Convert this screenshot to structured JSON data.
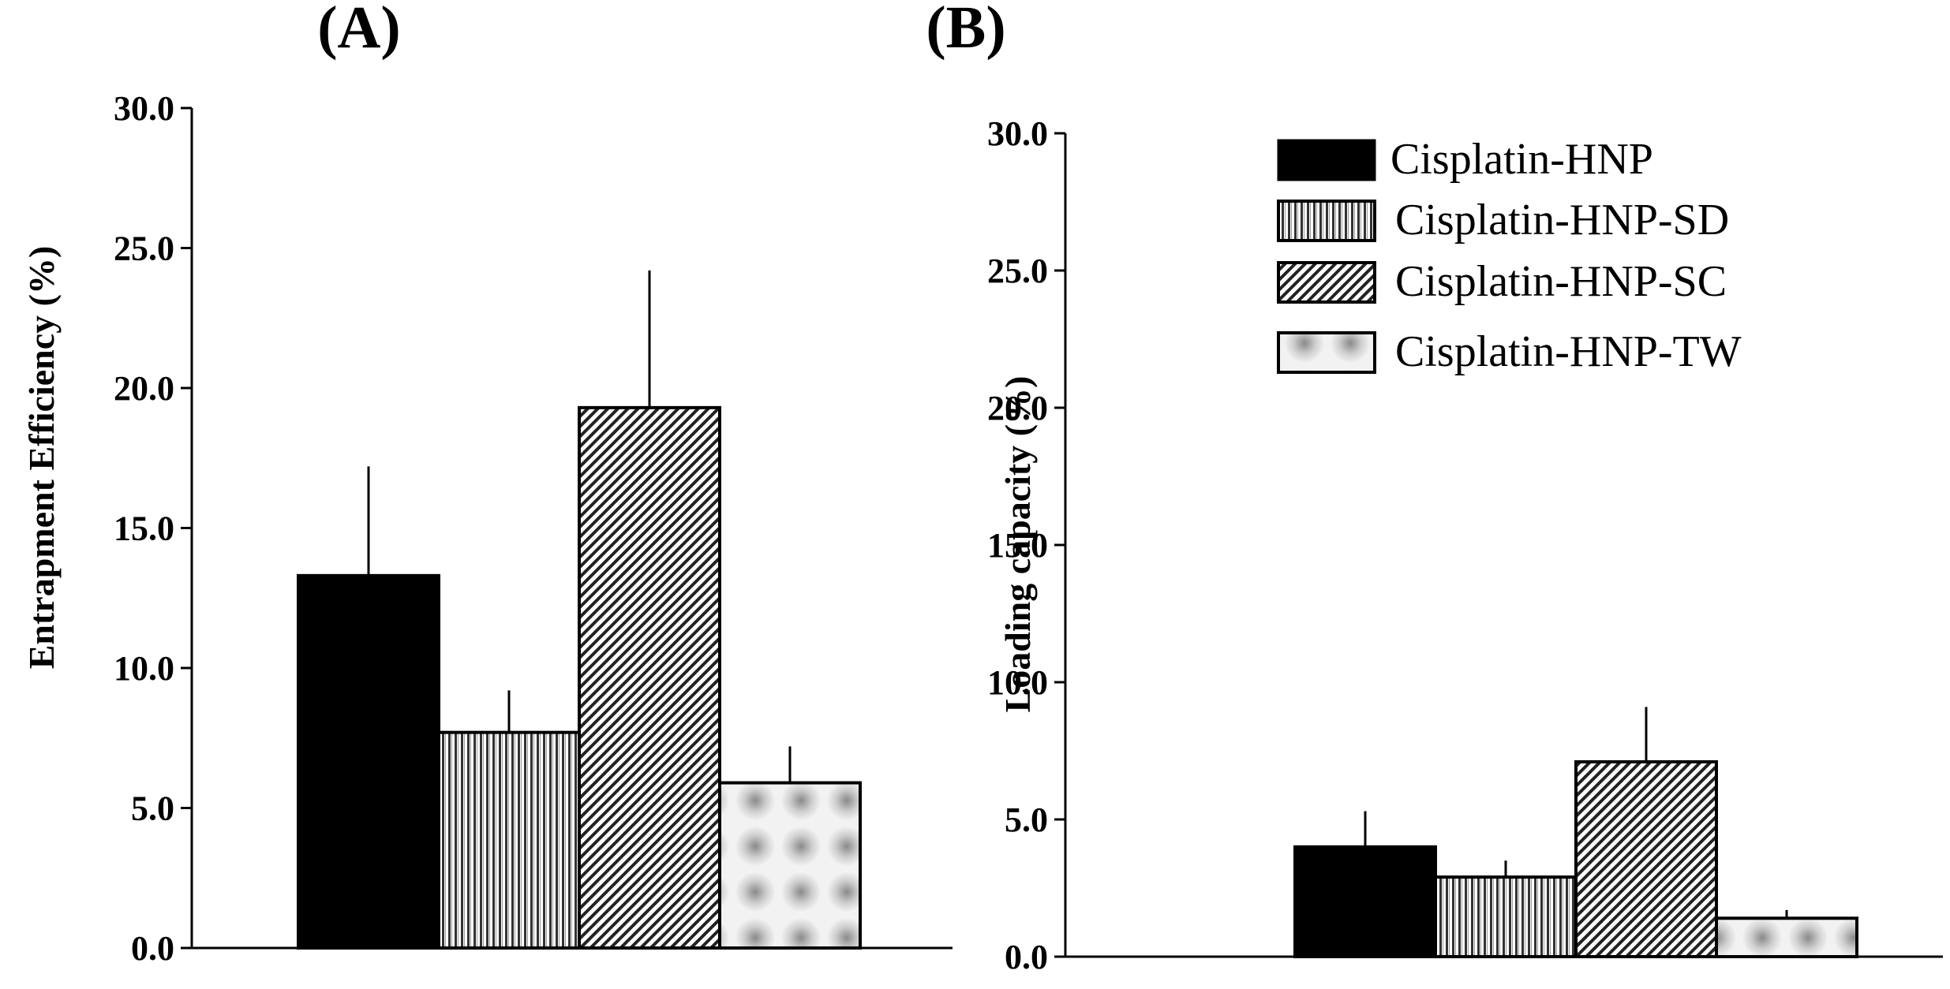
{
  "chart_data": [
    {
      "type": "bar",
      "panel_label": "(A)",
      "title": "(A)",
      "xlabel": "",
      "ylabel": "Entrapment Efficiency (%)",
      "ylim": [
        0,
        30
      ],
      "yticks": [
        "0.0",
        "5.0",
        "10.0",
        "15.0",
        "20.0",
        "25.0",
        "30.0"
      ],
      "series": [
        {
          "name": "Cisplatin-HNP",
          "value": 13.3,
          "error": 3.9
        },
        {
          "name": "Cisplatin-HNP-SD",
          "value": 7.7,
          "error": 1.5
        },
        {
          "name": "Cisplatin-HNP-SC",
          "value": 19.3,
          "error": 4.9
        },
        {
          "name": "Cisplatin-HNP-TW",
          "value": 5.9,
          "error": 1.3
        }
      ]
    },
    {
      "type": "bar",
      "panel_label": "(B)",
      "title": "(B)",
      "xlabel": "",
      "ylabel": "Loading capacity (%)",
      "ylim": [
        0,
        30
      ],
      "yticks": [
        "0.0",
        "5.0",
        "10.0",
        "15.0",
        "20.0",
        "25.0",
        "30.0"
      ],
      "legend_position": "top-right",
      "series": [
        {
          "name": "Cisplatin-HNP",
          "value": 4.0,
          "error": 1.3
        },
        {
          "name": "Cisplatin-HNP-SD",
          "value": 2.9,
          "error": 0.6
        },
        {
          "name": "Cisplatin-HNP-SC",
          "value": 7.1,
          "error": 2.0
        },
        {
          "name": "Cisplatin-HNP-TW",
          "value": 1.4,
          "error": 0.3
        }
      ]
    }
  ],
  "legend": {
    "entries": [
      "Cisplatin-HNP",
      "Cisplatin-HNP-SD",
      "Cisplatin-HNP-SC",
      "Cisplatin-HNP-TW"
    ]
  },
  "colors": {
    "ink": "#000000",
    "background": "#ffffff"
  }
}
